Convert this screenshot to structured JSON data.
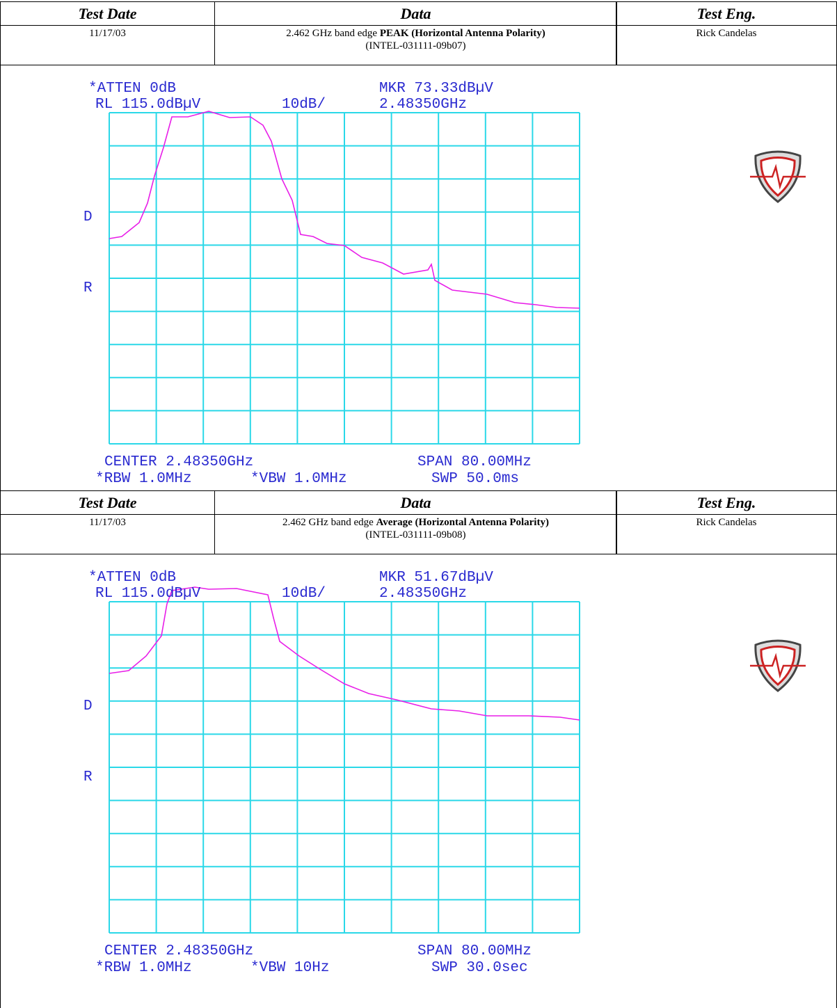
{
  "sections": [
    {
      "header": {
        "test_date": "Test Date",
        "data": "Data",
        "test_eng": "Test Eng."
      },
      "row": {
        "test_date": "11/17/03",
        "data_prefix": "2.462 GHz band edge ",
        "data_bold": "PEAK (Horizontal Antenna Polarity)",
        "data_id": "(INTEL-031111-09b07)",
        "test_eng": "Rick Candelas"
      },
      "analyzer": {
        "atten": "*ATTEN 0dB",
        "rl": "RL 115.0dBµV",
        "scale": "10dB/",
        "mkr": "MKR 73.33dBµV",
        "mkr_freq": "2.48350GHz",
        "d": "D",
        "r": "R",
        "center": "CENTER 2.48350GHz",
        "span": "SPAN 80.00MHz",
        "rbw": "*RBW 1.0MHz",
        "vbw": "*VBW 1.0MHz",
        "swp": "SWP 50.0ms"
      }
    },
    {
      "header": {
        "test_date": "Test Date",
        "data": "Data",
        "test_eng": "Test Eng."
      },
      "row": {
        "test_date": "11/17/03",
        "data_prefix": "2.462 GHz band edge ",
        "data_bold": "Average (Horizontal Antenna Polarity)",
        "data_id": "(INTEL-031111-09b08)",
        "test_eng": "Rick Candelas"
      },
      "analyzer": {
        "atten": "*ATTEN 0dB",
        "rl": "RL 115.0dBµV",
        "scale": "10dB/",
        "mkr": "MKR 51.67dBµV",
        "mkr_freq": "2.48350GHz",
        "d": "D",
        "r": "R",
        "center": "CENTER 2.48350GHz",
        "span": "SPAN 80.00MHz",
        "rbw": "*RBW 1.0MHz",
        "vbw": "*VBW 10Hz",
        "swp": "SWP 30.0sec"
      }
    }
  ]
}
